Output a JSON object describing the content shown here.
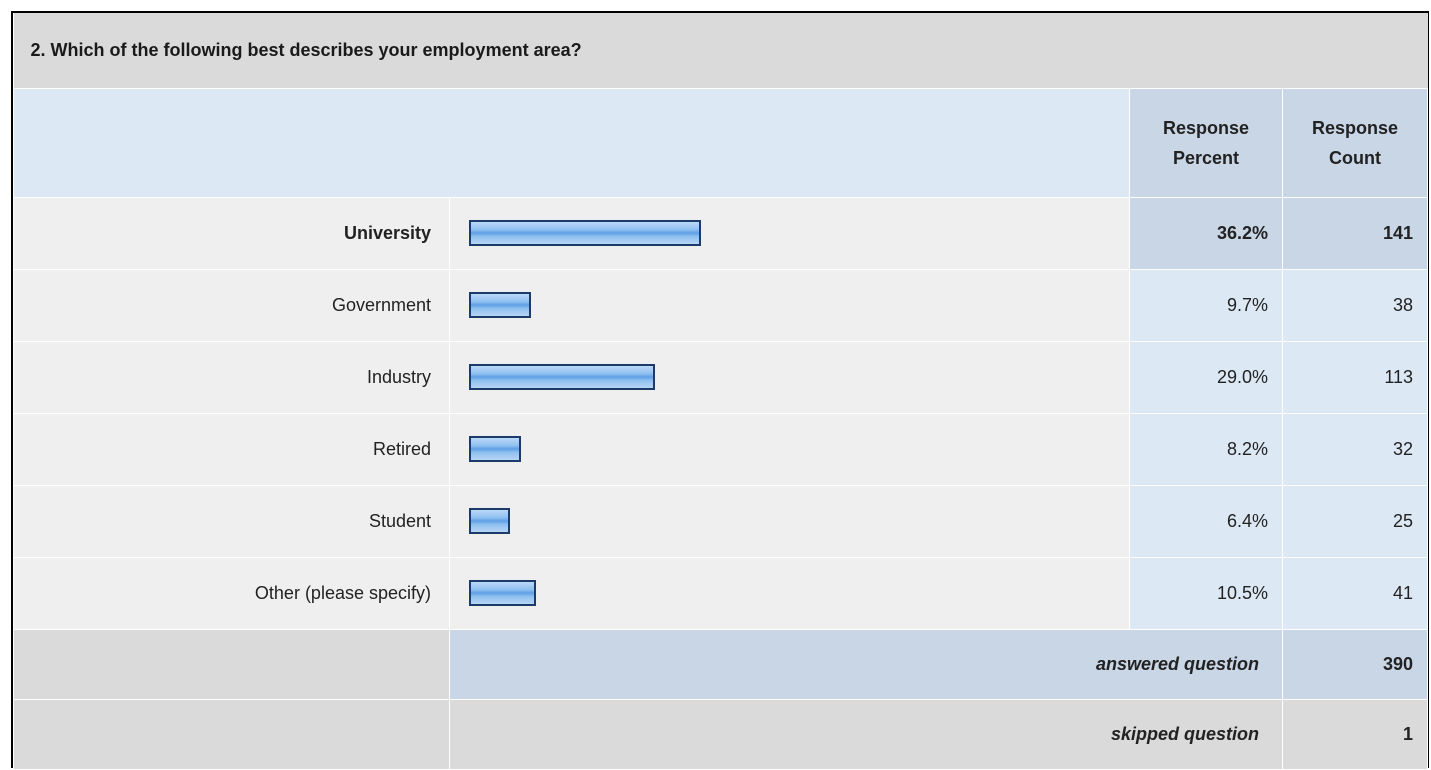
{
  "question": {
    "title": "2. Which of the following best describes your employment area?"
  },
  "columns": {
    "percent": [
      "Response",
      "Percent"
    ],
    "count": [
      "Response",
      "Count"
    ]
  },
  "chart_data": {
    "type": "bar",
    "categories": [
      "University",
      "Government",
      "Industry",
      "Retired",
      "Student",
      "Other (please specify)"
    ],
    "values": [
      36.2,
      9.7,
      29.0,
      8.2,
      6.4,
      10.5
    ],
    "percent_labels": [
      "36.2%",
      "9.7%",
      "29.0%",
      "8.2%",
      "6.4%",
      "10.5%"
    ],
    "counts": [
      141,
      38,
      113,
      32,
      25,
      41
    ],
    "highlighted_category": "University",
    "bar_color": "#8ec0f0"
  },
  "summary": {
    "answered_label": "answered question",
    "answered_value": "390",
    "skipped_label": "skipped question",
    "skipped_value": "1"
  }
}
